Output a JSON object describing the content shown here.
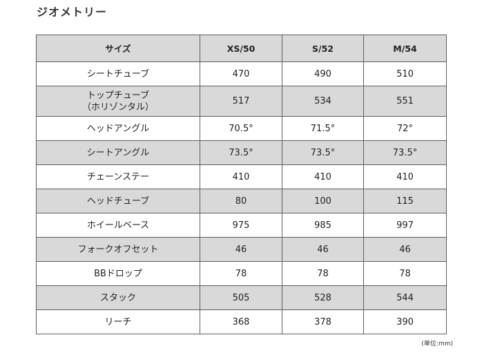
{
  "title": "ジオメトリー",
  "table": {
    "headers": [
      "サイズ",
      "XS/50",
      "S/52",
      "M/54"
    ],
    "rows": [
      {
        "label": [
          "シートチューブ"
        ],
        "values": [
          "470",
          "490",
          "510"
        ]
      },
      {
        "label": [
          "トップチューブ",
          "（ホリゾンタル）"
        ],
        "values": [
          "517",
          "534",
          "551"
        ]
      },
      {
        "label": [
          "ヘッドアングル"
        ],
        "values": [
          "70.5°",
          "71.5°",
          "72°"
        ]
      },
      {
        "label": [
          "シートアングル"
        ],
        "values": [
          "73.5°",
          "73.5°",
          "73.5°"
        ]
      },
      {
        "label": [
          "チェーンステー"
        ],
        "values": [
          "410",
          "410",
          "410"
        ]
      },
      {
        "label": [
          "ヘッドチューブ"
        ],
        "values": [
          "80",
          "100",
          "115"
        ]
      },
      {
        "label": [
          "ホイールベース"
        ],
        "values": [
          "975",
          "985",
          "997"
        ]
      },
      {
        "label": [
          "フォークオフセット"
        ],
        "values": [
          "46",
          "46",
          "46"
        ]
      },
      {
        "label": [
          "BBドロップ"
        ],
        "values": [
          "78",
          "78",
          "78"
        ]
      },
      {
        "label": [
          "スタック"
        ],
        "values": [
          "505",
          "528",
          "544"
        ]
      },
      {
        "label": [
          "リーチ"
        ],
        "values": [
          "368",
          "378",
          "390"
        ]
      }
    ]
  },
  "unit_note": "(単位:mm)",
  "colors": {
    "header_bg": "#d9d9d9",
    "shaded_row_bg": "#d9d9d9",
    "border": "#5c5c5c"
  }
}
